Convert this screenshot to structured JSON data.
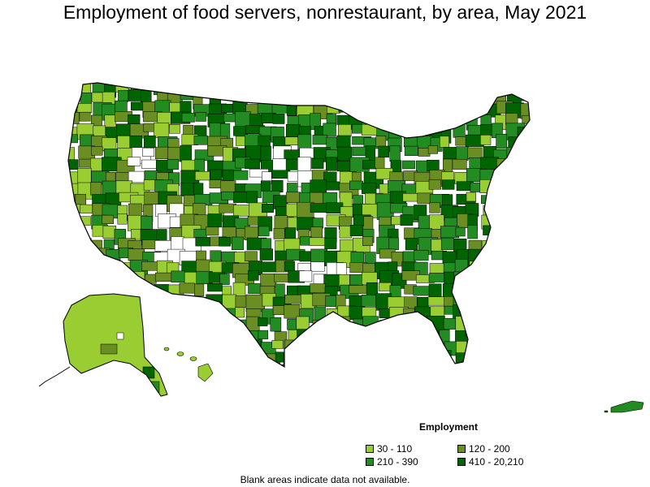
{
  "title": "Employment of food servers, nonrestaurant, by area, May 2021",
  "legend": {
    "title": "Employment",
    "items": [
      {
        "label": "30 - 110",
        "color": "#9acd32"
      },
      {
        "label": "120 - 200",
        "color": "#6b8e23"
      },
      {
        "label": "210 - 390",
        "color": "#228b22"
      },
      {
        "label": "410 - 20,210",
        "color": "#006400"
      }
    ]
  },
  "footnote": "Blank areas indicate data not available.",
  "colors": {
    "border": "#000000",
    "no_data": "#ffffff"
  }
}
